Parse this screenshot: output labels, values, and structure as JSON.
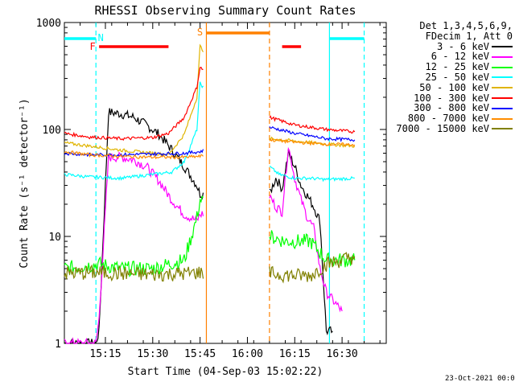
{
  "chart_data": {
    "type": "line",
    "title": "RHESSI Observing Summary Count Rates",
    "xlabel": "Start Time (04-Sep-03 15:02:22)",
    "ylabel": "Count Rate (s⁻¹ detector⁻¹)",
    "yscale": "log",
    "ylim": [
      1,
      1000
    ],
    "xlim": [
      "15:02",
      "16:44"
    ],
    "x_ticks": [
      "15:15",
      "15:30",
      "15:45",
      "16:00",
      "16:15",
      "16:30"
    ],
    "y_ticks": [
      "1",
      "10",
      "100",
      "1000"
    ],
    "grid": false,
    "legend_position": "right",
    "legend_header": [
      "Det 1,3,4,5,6,9,",
      "FDecim 1, Att 0"
    ],
    "series": [
      {
        "name": "3 - 6 keV",
        "color": "#000000",
        "x": [
          "15:02",
          "15:12",
          "15:13",
          "15:16",
          "15:20",
          "15:24",
          "15:28",
          "15:32",
          "15:36",
          "15:40",
          "15:44",
          "15:45",
          "16:07",
          "16:09",
          "16:11",
          "16:13",
          "16:15",
          "16:17",
          "16:19",
          "16:21",
          "16:23",
          "16:25",
          "16:27"
        ],
        "y": [
          1,
          1,
          1.3,
          145,
          140,
          130,
          110,
          90,
          65,
          45,
          30,
          25,
          25,
          35,
          28,
          60,
          45,
          30,
          24,
          19,
          14,
          1.3,
          1.3
        ]
      },
      {
        "name": "6 - 12 keV",
        "color": "#ff00ff",
        "x": [
          "15:02",
          "15:12",
          "15:13",
          "15:16",
          "15:20",
          "15:24",
          "15:28",
          "15:32",
          "15:36",
          "15:40",
          "15:44",
          "15:45",
          "16:07",
          "16:09",
          "16:11",
          "16:13",
          "16:15",
          "16:17",
          "16:19",
          "16:21",
          "16:23",
          "16:25",
          "16:30"
        ],
        "y": [
          1,
          1,
          1.7,
          55,
          55,
          52,
          45,
          33,
          22,
          16,
          14,
          16,
          24,
          19,
          17,
          70,
          35,
          22,
          15,
          12,
          5,
          3,
          2
        ]
      },
      {
        "name": "12 - 25 keV",
        "color": "#00ff00",
        "x": [
          "15:02",
          "15:13",
          "15:20",
          "15:30",
          "15:35",
          "15:40",
          "15:44",
          "15:45",
          "16:07",
          "16:12",
          "16:20",
          "16:25",
          "16:34"
        ],
        "y": [
          5,
          5.5,
          5,
          5,
          5.5,
          6,
          15,
          22,
          10,
          9,
          9,
          6,
          6
        ]
      },
      {
        "name": "25 - 50 keV",
        "color": "#00ffff",
        "x": [
          "15:02",
          "15:10",
          "15:20",
          "15:30",
          "15:36",
          "15:40",
          "15:44",
          "15:45",
          "16:07",
          "16:10",
          "16:15",
          "16:20",
          "16:25",
          "16:34"
        ],
        "y": [
          38,
          36,
          35,
          38,
          40,
          50,
          100,
          270,
          45,
          38,
          35,
          35,
          34,
          35
        ]
      },
      {
        "name": "50 - 100 keV",
        "color": "#e0b400",
        "x": [
          "15:02",
          "15:10",
          "15:20",
          "15:30",
          "15:35",
          "15:40",
          "15:44",
          "15:45",
          "16:07",
          "16:15",
          "16:25",
          "16:34"
        ],
        "y": [
          75,
          70,
          64,
          60,
          58,
          90,
          200,
          600,
          82,
          78,
          73,
          70
        ]
      },
      {
        "name": "100 - 300 keV",
        "color": "#ff0000",
        "x": [
          "15:02",
          "15:10",
          "15:20",
          "15:30",
          "15:35",
          "15:40",
          "15:44",
          "15:45",
          "16:07",
          "16:15",
          "16:25",
          "16:34"
        ],
        "y": [
          92,
          85,
          82,
          84,
          92,
          130,
          250,
          380,
          130,
          110,
          100,
          95
        ]
      },
      {
        "name": "300 - 800 keV",
        "color": "#0000ff",
        "x": [
          "15:02",
          "15:10",
          "15:20",
          "15:30",
          "15:40",
          "15:45",
          "16:07",
          "16:15",
          "16:25",
          "16:34"
        ],
        "y": [
          60,
          58,
          58,
          59,
          60,
          62,
          105,
          92,
          82,
          80
        ]
      },
      {
        "name": "800 - 7000 keV",
        "color": "#ff8c00",
        "x": [
          "15:02",
          "15:10",
          "15:20",
          "15:30",
          "15:40",
          "15:45",
          "16:07",
          "16:15",
          "16:25",
          "16:34"
        ],
        "y": [
          62,
          58,
          56,
          55,
          55,
          56,
          80,
          76,
          73,
          72
        ]
      },
      {
        "name": "7000 - 15000 keV",
        "color": "#808000",
        "x": [
          "15:02",
          "15:12",
          "15:20",
          "15:30",
          "15:40",
          "15:45",
          "16:07",
          "16:15",
          "16:20",
          "16:25",
          "16:34"
        ],
        "y": [
          4.5,
          4.6,
          4.5,
          4.4,
          4.5,
          4.6,
          4.5,
          4.3,
          4.3,
          5.5,
          6.5
        ]
      }
    ],
    "annotations": {
      "flags_line_color": "#00ffff",
      "flag_bars": [
        {
          "label": "N",
          "color": "#00ffff",
          "x0": "15:02",
          "x1": "15:12"
        },
        {
          "label": "F",
          "color": "#ff0000",
          "x0": "15:13",
          "x1": "15:35"
        },
        {
          "label": "S",
          "color": "#ff8000",
          "x0": "15:47",
          "x1": "16:07"
        },
        {
          "label": "",
          "color": "#ff0000",
          "x0": "16:11",
          "x1": "16:17"
        },
        {
          "label": "",
          "color": "#00ffff",
          "x0": "16:26",
          "x1": "16:37"
        }
      ],
      "vlines": [
        {
          "x": "15:12",
          "color": "#00ffff",
          "style": "dashed"
        },
        {
          "x": "15:47",
          "color": "#ff8000",
          "style": "solid"
        },
        {
          "x": "16:07",
          "color": "#ff8000",
          "style": "dashed"
        },
        {
          "x": "16:26",
          "color": "#00ffff",
          "style": "solid"
        },
        {
          "x": "16:37",
          "color": "#00ffff",
          "style": "dashed"
        }
      ]
    }
  },
  "timestamp": "23-Oct-2021 00:07"
}
